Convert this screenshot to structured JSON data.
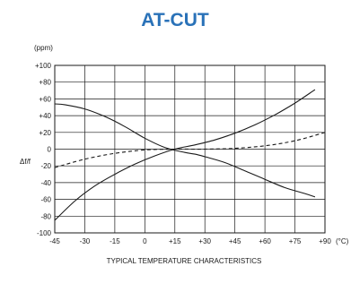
{
  "chart_data": {
    "type": "line",
    "title": "AT-CUT",
    "unit_label": "(ppm)",
    "ylabel": "Δf/f",
    "x_unit": "(°C)",
    "xlabel": "TYPICAL TEMPERATURE CHARACTERISTICS",
    "x_ticks": [
      "-45",
      "-30",
      "-15",
      "0",
      "+15",
      "+30",
      "+45",
      "+60",
      "+75",
      "+90"
    ],
    "y_ticks": [
      "+100",
      "+80",
      "+60",
      "+40",
      "+20",
      "0",
      "-20",
      "-40",
      "-60",
      "-80",
      "-100"
    ],
    "xlim": [
      -45,
      90
    ],
    "ylim": [
      -100,
      100
    ],
    "grid": true,
    "colors": {
      "title": "#2a72b8",
      "line": "#1a1a1a",
      "grid": "#1a1a1a"
    },
    "series": [
      {
        "style": "solid",
        "x": [
          -45,
          -40,
          -30,
          -20,
          -10,
          0,
          10,
          20,
          25,
          30,
          40,
          50,
          60,
          70,
          80,
          85
        ],
        "y": [
          54,
          53,
          48,
          39,
          27,
          13,
          2,
          -4,
          -6,
          -9,
          -16,
          -26,
          -36,
          -46,
          -53,
          -57
        ]
      },
      {
        "style": "solid",
        "x": [
          -45,
          -35,
          -25,
          -15,
          -5,
          5,
          15,
          25,
          35,
          45,
          55,
          65,
          75,
          85
        ],
        "y": [
          -85,
          -62,
          -44,
          -30,
          -18,
          -8,
          0,
          5,
          11,
          19,
          29,
          41,
          55,
          71
        ]
      },
      {
        "style": "dashed",
        "x": [
          -45,
          -30,
          -15,
          0,
          15,
          30,
          45,
          60,
          75,
          90
        ],
        "y": [
          -22,
          -12,
          -5,
          -1,
          0,
          0,
          1,
          4,
          10,
          20
        ]
      }
    ]
  }
}
